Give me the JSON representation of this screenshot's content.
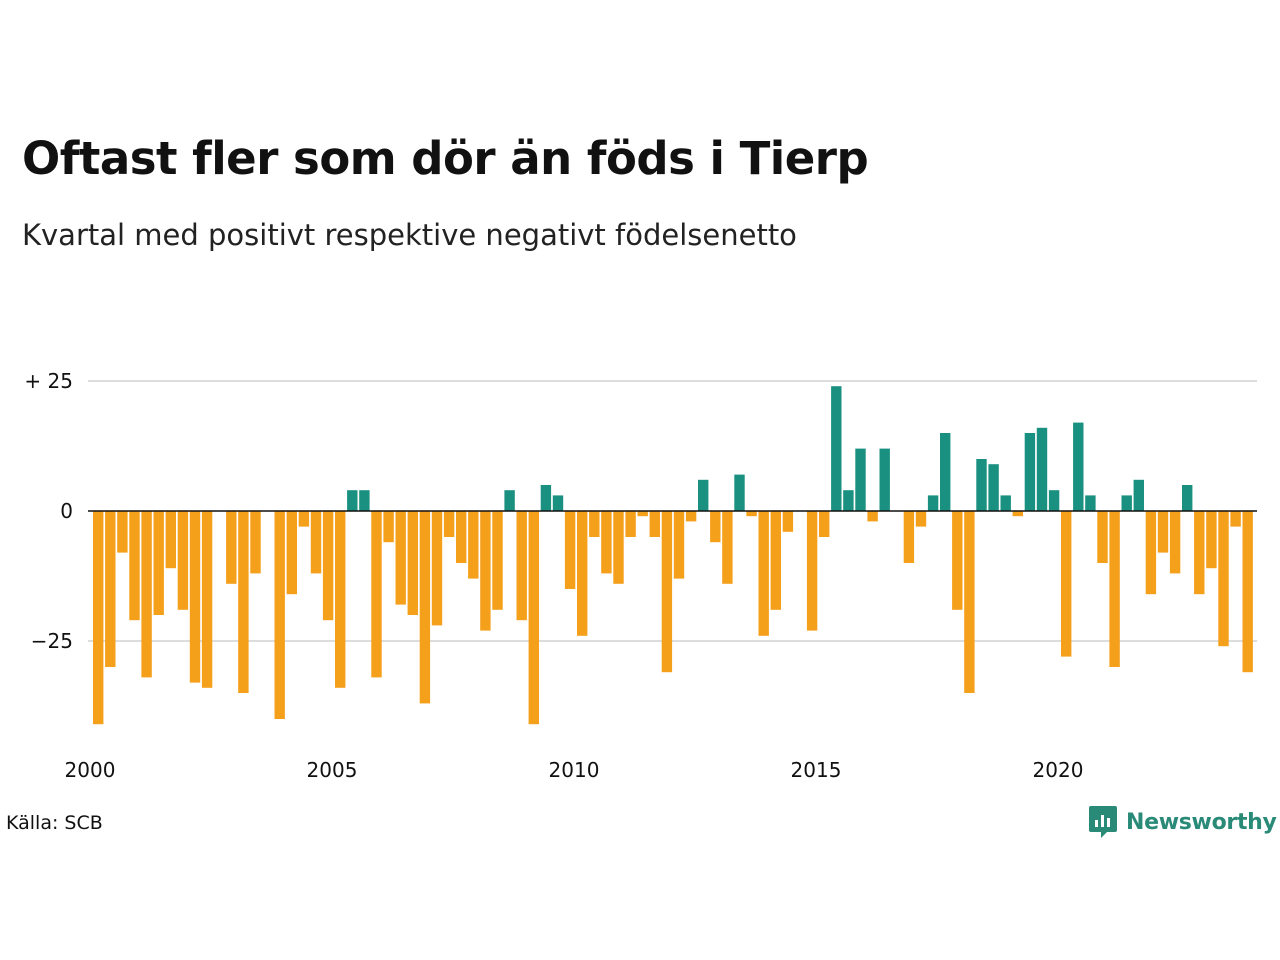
{
  "title": "Oftast fler som dör än föds i Tierp",
  "subtitle": "Kvartal med positivt respektive negativt födelsenetto",
  "source": "Källa: SCB",
  "brand": {
    "name": "Newsworthy",
    "icon": "newsworthy-logo-icon"
  },
  "colors": {
    "positive": "#1a9080",
    "negative": "#f5a01a",
    "grid": "#dddddd",
    "zero_line": "#111111"
  },
  "chart_data": {
    "type": "bar",
    "title": "Oftast fler som dör än föds i Tierp",
    "subtitle": "Kvartal med positivt respektive negativt födelsenetto",
    "x_start_year": 2000,
    "periods_per_year": 4,
    "x_tick_labels": [
      "2000",
      "2005",
      "2010",
      "2015",
      "2020"
    ],
    "y_tick_labels": [
      "+ 25",
      "0",
      "−25"
    ],
    "y_ticks": [
      25,
      0,
      -25
    ],
    "ylim": [
      -43,
      27
    ],
    "grid": true,
    "values": [
      -41,
      -30,
      -8,
      -21,
      -32,
      -20,
      -11,
      -19,
      -33,
      -34,
      0,
      -14,
      -35,
      -12,
      0,
      -40,
      -16,
      -3,
      -12,
      -21,
      -34,
      4,
      4,
      -32,
      -6,
      -18,
      -20,
      -37,
      -22,
      -5,
      -10,
      -13,
      -23,
      -19,
      4,
      -21,
      -41,
      5,
      3,
      -15,
      -24,
      -5,
      -12,
      -14,
      -5,
      -1,
      -5,
      -31,
      -13,
      -2,
      6,
      -6,
      -14,
      7,
      -1,
      -24,
      -19,
      -4,
      0,
      -23,
      -5,
      24,
      4,
      12,
      -2,
      12,
      0,
      -10,
      -3,
      3,
      15,
      -19,
      -35,
      10,
      9,
      3,
      -1,
      15,
      16,
      4,
      -28,
      17,
      3,
      -10,
      -30,
      3,
      6,
      -16,
      -8,
      -12,
      5,
      -16,
      -11,
      -26,
      -3,
      -31
    ]
  }
}
